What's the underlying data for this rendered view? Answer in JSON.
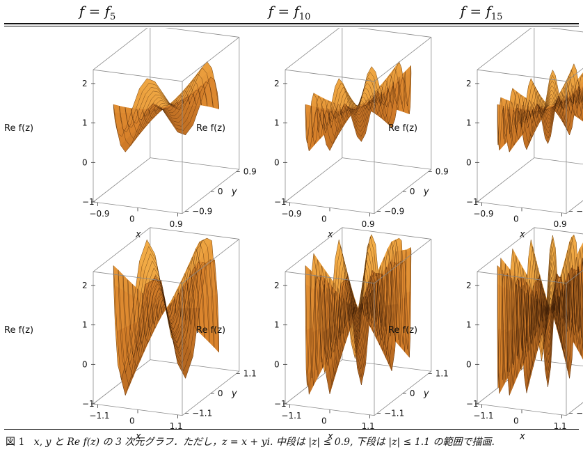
{
  "columns": [
    {
      "lhs": "f = f",
      "sub": "5"
    },
    {
      "lhs": "f = f",
      "sub": "10"
    },
    {
      "lhs": "f = f",
      "sub": "15"
    }
  ],
  "axes": {
    "z_label": "Re f(z)",
    "x_label": "x",
    "y_label": "y",
    "z_ticks": [
      "2",
      "1",
      "0",
      "−1"
    ],
    "row_top_xy_ticks": [
      "−0.9",
      "0",
      "0.9"
    ],
    "row_bottom_xy_ticks": [
      "−1.1",
      "0",
      "1.1"
    ]
  },
  "caption": {
    "label": "図 1",
    "text": "x, y と Re f(z) の 3 次元グラフ．ただし，z = x + yi. 中段は |z| ≤ 0.9, 下段は |z| ≤ 1.1 の範囲で描画."
  },
  "chart_data": [
    {
      "type": "surface",
      "title": "f = f5",
      "domain": "|z| ≤ 0.9",
      "zlabel": "Re f(z)",
      "xlabel": "x",
      "ylabel": "y",
      "zlim": [
        -1,
        2
      ],
      "xlim": [
        -0.9,
        0.9
      ],
      "ylim": [
        -0.9,
        0.9
      ],
      "n": 5
    },
    {
      "type": "surface",
      "title": "f = f10",
      "domain": "|z| ≤ 0.9",
      "zlabel": "Re f(z)",
      "xlabel": "x",
      "ylabel": "y",
      "zlim": [
        -1,
        2
      ],
      "xlim": [
        -0.9,
        0.9
      ],
      "ylim": [
        -0.9,
        0.9
      ],
      "n": 10
    },
    {
      "type": "surface",
      "title": "f = f15",
      "domain": "|z| ≤ 0.9",
      "zlabel": "Re f(z)",
      "xlabel": "x",
      "ylabel": "y",
      "zlim": [
        -1,
        2
      ],
      "xlim": [
        -0.9,
        0.9
      ],
      "ylim": [
        -0.9,
        0.9
      ],
      "n": 15
    },
    {
      "type": "surface",
      "title": "f = f5",
      "domain": "|z| ≤ 1.1",
      "zlabel": "Re f(z)",
      "xlabel": "x",
      "ylabel": "y",
      "zlim": [
        -1,
        2
      ],
      "xlim": [
        -1.1,
        1.1
      ],
      "ylim": [
        -1.1,
        1.1
      ],
      "n": 5
    },
    {
      "type": "surface",
      "title": "f = f10",
      "domain": "|z| ≤ 1.1",
      "zlabel": "Re f(z)",
      "xlabel": "x",
      "ylabel": "y",
      "zlim": [
        -1,
        2
      ],
      "xlim": [
        -1.1,
        1.1
      ],
      "ylim": [
        -1.1,
        1.1
      ],
      "n": 10
    },
    {
      "type": "surface",
      "title": "f = f15",
      "domain": "|z| ≤ 1.1",
      "zlabel": "Re f(z)",
      "xlabel": "x",
      "ylabel": "y",
      "zlim": [
        -1,
        2
      ],
      "xlim": [
        -1.1,
        1.1
      ],
      "ylim": [
        -1.1,
        1.1
      ],
      "n": 15
    }
  ],
  "colors": {
    "surface_light": "#f6b24a",
    "surface_mid": "#d9822b",
    "surface_dark": "#7a3d10",
    "mesh": "#3a1c06",
    "box": "#888888"
  }
}
